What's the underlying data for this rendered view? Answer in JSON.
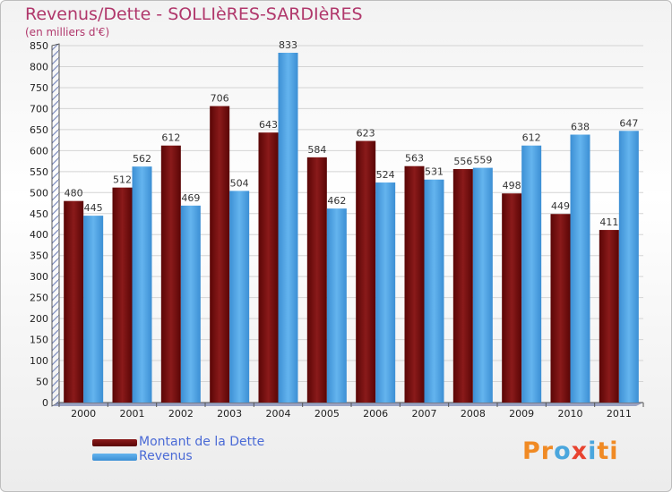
{
  "chart_data": {
    "type": "bar",
    "title": "Revenus/Dette - SOLLIèRES-SARDIèRES",
    "subtitle": "(en milliers d'€)",
    "categories": [
      "2000",
      "2001",
      "2002",
      "2003",
      "2004",
      "2005",
      "2006",
      "2007",
      "2008",
      "2009",
      "2010",
      "2011"
    ],
    "series": [
      {
        "name": "Montant de la Dette",
        "color": "#7a1010",
        "values": [
          480,
          512,
          612,
          706,
          643,
          584,
          623,
          563,
          556,
          498,
          449,
          411
        ]
      },
      {
        "name": "Revenus",
        "color": "#4a9fe0",
        "values": [
          445,
          562,
          469,
          504,
          833,
          462,
          524,
          531,
          559,
          612,
          638,
          647
        ]
      }
    ],
    "ylim": [
      0,
      850
    ],
    "yticks": [
      0,
      50,
      100,
      150,
      200,
      250,
      300,
      350,
      400,
      450,
      500,
      550,
      600,
      650,
      700,
      750,
      800,
      850
    ],
    "grid": true,
    "legend": "bottom-left"
  },
  "logo": {
    "text": "Proxiti"
  }
}
